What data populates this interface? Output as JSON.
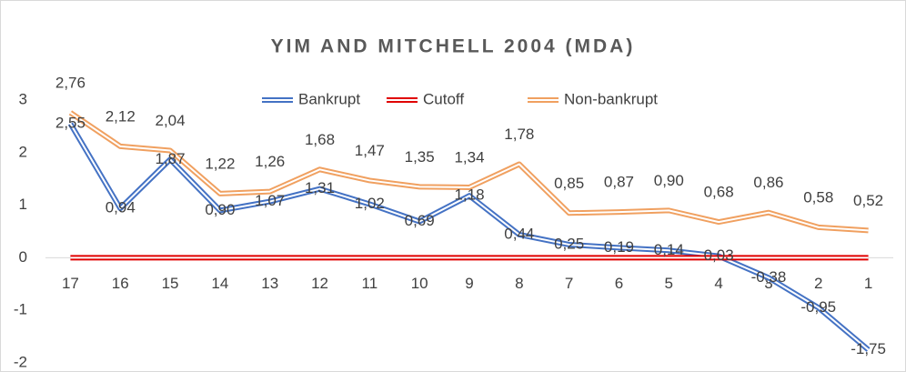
{
  "chart_data": {
    "type": "line",
    "title": "YIM AND MITCHELL 2004 (MDA)",
    "categories": [
      "17",
      "16",
      "15",
      "14",
      "13",
      "12",
      "11",
      "10",
      "9",
      "8",
      "7",
      "6",
      "5",
      "4",
      "3",
      "2",
      "1"
    ],
    "series": [
      {
        "name": "Bankrupt",
        "color": "#4472c4",
        "values": [
          2.55,
          0.94,
          1.87,
          0.9,
          1.07,
          1.31,
          1.02,
          0.69,
          1.18,
          0.44,
          0.25,
          0.19,
          0.14,
          0.03,
          -0.38,
          -0.95,
          -1.75
        ],
        "value_labels": [
          "2,55",
          "0,94",
          "1,87",
          "0,90",
          "1,07",
          "1,31",
          "1,02",
          "0,69",
          "1,18",
          "0,44",
          "0,25",
          "0,19",
          "0,14",
          "0,03",
          "-0,38",
          "-0,95",
          "-1,75"
        ]
      },
      {
        "name": "Cutoff",
        "color": "#e00000",
        "values": [
          0,
          0,
          0,
          0,
          0,
          0,
          0,
          0,
          0,
          0,
          0,
          0,
          0,
          0,
          0,
          0,
          0
        ]
      },
      {
        "name": "Non-bankrupt",
        "color": "#f0a060",
        "values": [
          2.76,
          2.12,
          2.04,
          1.22,
          1.26,
          1.68,
          1.47,
          1.35,
          1.34,
          1.78,
          0.85,
          0.87,
          0.9,
          0.68,
          0.86,
          0.58,
          0.52
        ],
        "value_labels": [
          "2,76",
          "2,12",
          "2,04",
          "1,22",
          "1,26",
          "1,68",
          "1,47",
          "1,35",
          "1,34",
          "1,78",
          "0,85",
          "0,87",
          "0,90",
          "0,68",
          "0,86",
          "0,58",
          "0,52"
        ]
      }
    ],
    "ylim": [
      -2,
      3
    ],
    "yticks": [
      3,
      2,
      1,
      0,
      -1,
      -2
    ],
    "legend": "top"
  }
}
